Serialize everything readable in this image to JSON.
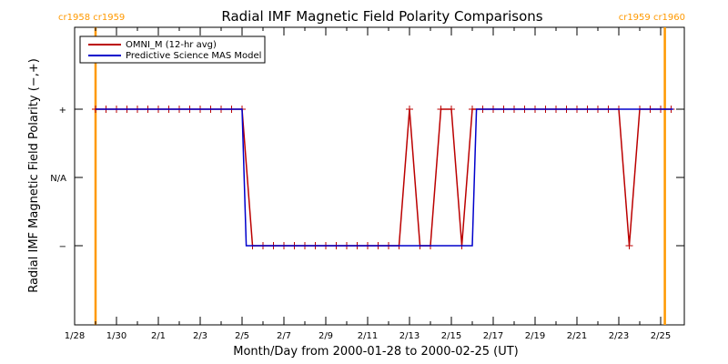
{
  "chart_data": {
    "type": "line",
    "title": "Radial IMF Magnetic Field Polarity Comparisons",
    "xlabel": "Month/Day from 2000-01-28 to 2000-02-25 (UT)",
    "ylabel": "Radial IMF Magnetic Field Polarity (−,+)",
    "xlim": [
      0,
      28.6
    ],
    "ylim": [
      -2,
      2
    ],
    "x_ticks": [
      {
        "x": 0,
        "label": "1/28"
      },
      {
        "x": 2,
        "label": "1/30"
      },
      {
        "x": 4,
        "label": "2/1"
      },
      {
        "x": 6,
        "label": "2/3"
      },
      {
        "x": 8,
        "label": "2/5"
      },
      {
        "x": 10,
        "label": "2/7"
      },
      {
        "x": 12,
        "label": "2/9"
      },
      {
        "x": 14,
        "label": "2/11"
      },
      {
        "x": 16,
        "label": "2/13"
      },
      {
        "x": 18,
        "label": "2/15"
      },
      {
        "x": 20,
        "label": "2/17"
      },
      {
        "x": 22,
        "label": "2/19"
      },
      {
        "x": 24,
        "label": "2/21"
      },
      {
        "x": 26,
        "label": "2/23"
      },
      {
        "x": 28,
        "label": "2/25"
      }
    ],
    "y_ticks": [
      {
        "y": 1,
        "label": "+"
      },
      {
        "y": 0,
        "label": "N/A"
      },
      {
        "y": -1,
        "label": "−"
      }
    ],
    "carrington": [
      {
        "x": 1.0,
        "label": "cr1958 cr1959",
        "side": "left"
      },
      {
        "x": 28.2,
        "label": "cr1959 cr1960",
        "side": "right"
      }
    ],
    "carrington_color": "#ff9900",
    "series": [
      {
        "name": "OMNI_M (12-hr avg)",
        "color": "#bb0000",
        "markers": true,
        "x": [
          1.0,
          1.5,
          2.0,
          2.5,
          3.0,
          3.5,
          4.0,
          4.5,
          5.0,
          5.5,
          6.0,
          6.5,
          7.0,
          7.5,
          8.0,
          8.5,
          9.0,
          9.5,
          10.0,
          10.5,
          11.0,
          11.5,
          12.0,
          12.5,
          13.0,
          13.5,
          14.0,
          14.5,
          15.0,
          15.5,
          16.0,
          16.5,
          17.0,
          17.5,
          18.0,
          18.5,
          19.0,
          19.5,
          20.0,
          20.5,
          21.0,
          21.5,
          22.0,
          22.5,
          23.0,
          23.5,
          24.0,
          24.5,
          25.0,
          25.5,
          26.0,
          26.5,
          27.0,
          27.5,
          28.0,
          28.5
        ],
        "y": [
          1,
          1,
          1,
          1,
          1,
          1,
          1,
          1,
          1,
          1,
          1,
          1,
          1,
          1,
          1,
          -1,
          -1,
          -1,
          -1,
          -1,
          -1,
          -1,
          -1,
          -1,
          -1,
          -1,
          -1,
          -1,
          -1,
          -1,
          1,
          -1,
          -1,
          1,
          1,
          -1,
          1,
          1,
          1,
          1,
          1,
          1,
          1,
          1,
          1,
          1,
          1,
          1,
          1,
          1,
          1,
          -1,
          1,
          1,
          1,
          1
        ]
      },
      {
        "name": "Predictive Science MAS Model",
        "color": "#0000cc",
        "markers": false,
        "x": [
          1.0,
          8.0,
          8.2,
          19.0,
          19.2,
          28.6
        ],
        "y": [
          1,
          1,
          -1,
          -1,
          1,
          1
        ]
      }
    ],
    "legend": "top-left",
    "grid": false
  }
}
